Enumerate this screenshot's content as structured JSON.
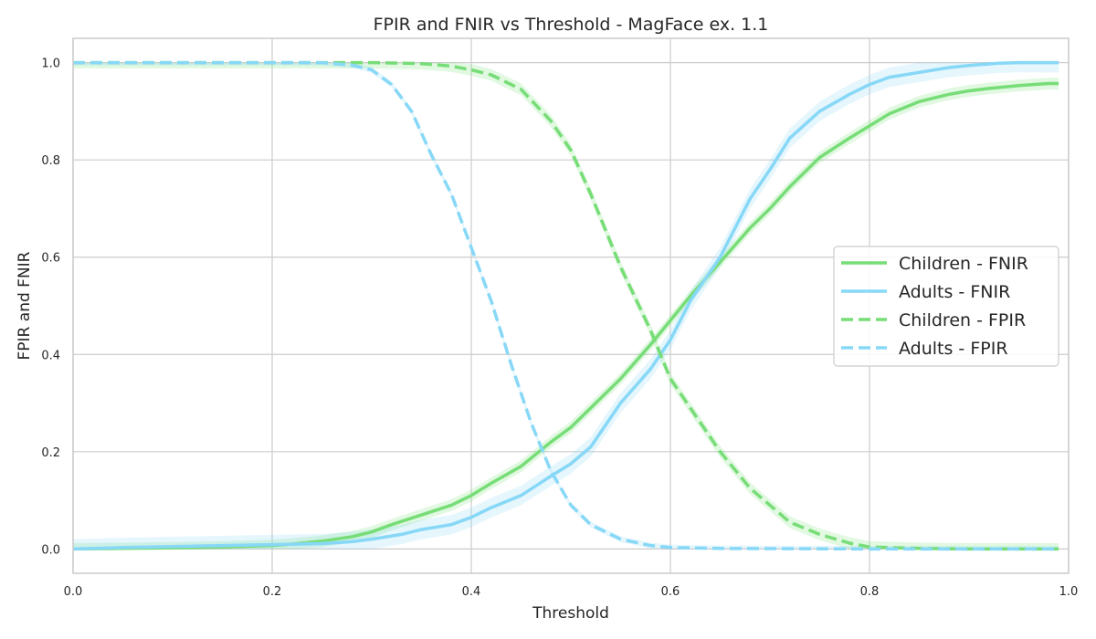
{
  "chart_data": {
    "type": "line",
    "title": "FPIR and FNIR vs Threshold - MagFace ex. 1.1",
    "xlabel": "Threshold",
    "ylabel": "FPIR and FNIR",
    "xlim": [
      0.0,
      1.0
    ],
    "ylim": [
      -0.05,
      1.05
    ],
    "xticks": [
      "0.0",
      "0.2",
      "0.4",
      "0.6",
      "0.8",
      "1.0"
    ],
    "yticks": [
      "0.0",
      "0.2",
      "0.4",
      "0.6",
      "0.8",
      "1.0"
    ],
    "grid": true,
    "legend_position": "center-right",
    "series": [
      {
        "name": "Children - FNIR",
        "color": "#77dd77",
        "style": "solid",
        "band": 0.012,
        "x": [
          0.0,
          0.05,
          0.1,
          0.15,
          0.2,
          0.22,
          0.25,
          0.28,
          0.3,
          0.32,
          0.35,
          0.38,
          0.4,
          0.42,
          0.45,
          0.48,
          0.5,
          0.52,
          0.55,
          0.58,
          0.6,
          0.62,
          0.65,
          0.68,
          0.7,
          0.72,
          0.75,
          0.78,
          0.8,
          0.82,
          0.85,
          0.88,
          0.9,
          0.92,
          0.95,
          0.98,
          0.99
        ],
        "y": [
          0.0,
          0.001,
          0.002,
          0.004,
          0.007,
          0.01,
          0.016,
          0.025,
          0.035,
          0.05,
          0.07,
          0.09,
          0.11,
          0.135,
          0.17,
          0.22,
          0.25,
          0.29,
          0.35,
          0.42,
          0.47,
          0.52,
          0.59,
          0.66,
          0.7,
          0.745,
          0.805,
          0.845,
          0.87,
          0.895,
          0.92,
          0.935,
          0.942,
          0.947,
          0.953,
          0.957,
          0.957
        ]
      },
      {
        "name": "Adults - FNIR",
        "color": "#87d8f7",
        "style": "solid",
        "band": 0.02,
        "x": [
          0.0,
          0.05,
          0.1,
          0.15,
          0.2,
          0.25,
          0.28,
          0.3,
          0.33,
          0.35,
          0.38,
          0.4,
          0.42,
          0.45,
          0.48,
          0.5,
          0.52,
          0.55,
          0.58,
          0.6,
          0.62,
          0.65,
          0.68,
          0.7,
          0.72,
          0.75,
          0.78,
          0.8,
          0.82,
          0.85,
          0.88,
          0.9,
          0.93,
          0.95,
          0.99
        ],
        "y": [
          0.0,
          0.003,
          0.005,
          0.007,
          0.009,
          0.011,
          0.015,
          0.02,
          0.03,
          0.04,
          0.05,
          0.065,
          0.085,
          0.11,
          0.15,
          0.175,
          0.21,
          0.3,
          0.37,
          0.43,
          0.51,
          0.6,
          0.72,
          0.78,
          0.845,
          0.9,
          0.935,
          0.955,
          0.97,
          0.98,
          0.99,
          0.994,
          0.999,
          1.0,
          1.0
        ]
      },
      {
        "name": "Children - FPIR",
        "color": "#77dd77",
        "style": "dashed",
        "band": 0.012,
        "x": [
          0.0,
          0.2,
          0.3,
          0.35,
          0.38,
          0.4,
          0.42,
          0.45,
          0.48,
          0.5,
          0.52,
          0.55,
          0.58,
          0.6,
          0.62,
          0.65,
          0.68,
          0.7,
          0.72,
          0.75,
          0.78,
          0.8,
          0.85,
          0.9,
          0.99
        ],
        "y": [
          1.0,
          1.0,
          1.0,
          0.998,
          0.993,
          0.985,
          0.975,
          0.945,
          0.88,
          0.82,
          0.73,
          0.58,
          0.45,
          0.35,
          0.29,
          0.2,
          0.125,
          0.09,
          0.055,
          0.03,
          0.012,
          0.004,
          0.001,
          0.0,
          0.0
        ]
      },
      {
        "name": "Adults - FPIR",
        "color": "#87d8f7",
        "style": "dashed",
        "band": 0.006,
        "x": [
          0.0,
          0.2,
          0.25,
          0.28,
          0.3,
          0.32,
          0.34,
          0.36,
          0.38,
          0.4,
          0.42,
          0.44,
          0.46,
          0.48,
          0.5,
          0.52,
          0.55,
          0.58,
          0.6,
          0.65,
          0.8,
          0.99
        ],
        "y": [
          1.0,
          1.0,
          1.0,
          0.995,
          0.985,
          0.955,
          0.9,
          0.81,
          0.73,
          0.62,
          0.51,
          0.38,
          0.26,
          0.16,
          0.09,
          0.05,
          0.02,
          0.007,
          0.003,
          0.001,
          0.0,
          0.0
        ]
      }
    ]
  }
}
